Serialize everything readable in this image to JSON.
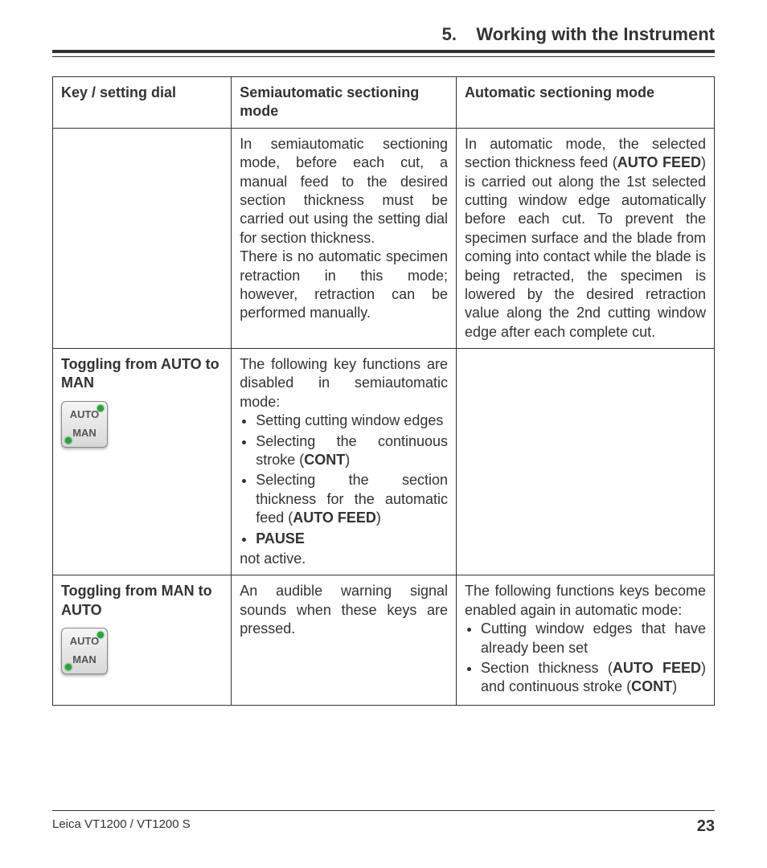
{
  "header": {
    "section_number": "5.",
    "section_title": "Working with the Instrument"
  },
  "table": {
    "columns": {
      "col1": "Key / setting dial",
      "col2": "Semiautomatic sectioning mode",
      "col3": "Automatic sectioning mode"
    },
    "row1": {
      "semi_p1": "In semiautomatic sectioning mode, before each cut, a manual feed to the desired section thickness must be carried out using the setting dial for section thickness.",
      "semi_p2": "There is no automatic specimen retraction in this mode; however, retraction can be performed manually.",
      "auto_a": "In automatic mode, the selected section thickness feed (",
      "auto_b": "AUTO FEED",
      "auto_c": ") is carried out along the 1st selected cutting window edge automatically before each cut. To prevent the specimen surface and the blade from coming into contact while the blade is being retracted, the specimen is lowered by the desired retraction value along the 2nd cutting window edge after each complete cut."
    },
    "row2": {
      "key_a": "Toggling from ",
      "key_b": "AUTO",
      "key_c": " to ",
      "key_d": "MAN",
      "icon_auto": "AUTO",
      "icon_man": "MAN",
      "intro": "The following key functions are disabled in semiautomatic mode:",
      "li1": "Setting cutting window edges",
      "li2_a": "Selecting the continuous stroke (",
      "li2_b": "CONT",
      "li2_c": ")",
      "li3_a": "Selecting the section thickness for the automatic feed (",
      "li3_b": "AUTO FEED",
      "li3_c": ")",
      "li4": "PAUSE",
      "post": "not active."
    },
    "row3": {
      "key_a": "Toggling from ",
      "key_b": "MAN",
      "key_c": " to ",
      "key_d": "AUTO",
      "icon_auto": "AUTO",
      "icon_man": "MAN",
      "semi": "An audible warning signal sounds when these keys are pressed.",
      "auto_intro": "The following functions keys become enabled again in automatic mode:",
      "li1": "Cutting window edges that have already been set",
      "li2_a": "Section thickness (",
      "li2_b": "AUTO FEED",
      "li2_c": ") and continuous stroke (",
      "li2_d": "CONT",
      "li2_e": ")"
    }
  },
  "footer": {
    "product": "Leica VT1200 / VT1200 S",
    "page": "23"
  }
}
